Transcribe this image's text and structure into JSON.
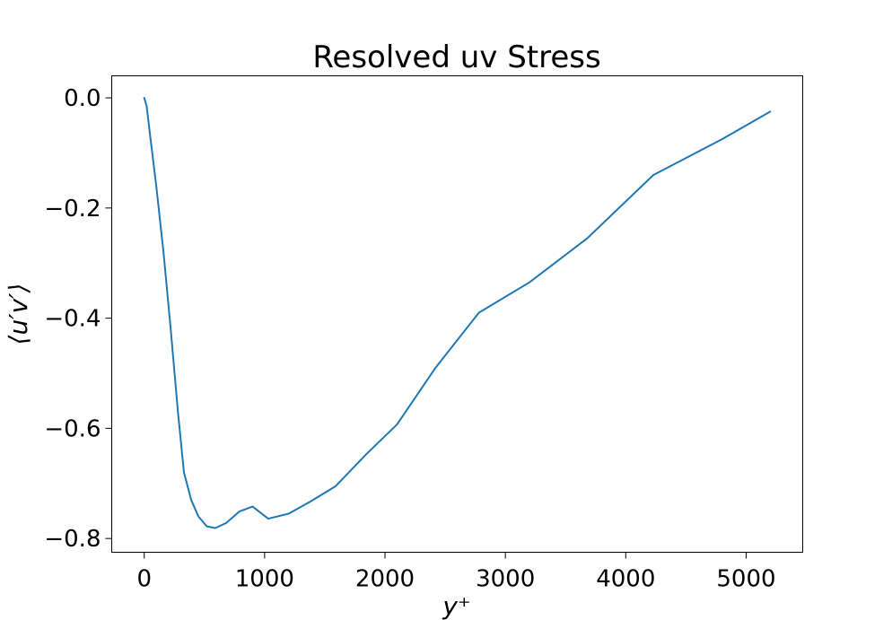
{
  "chart_data": {
    "type": "line",
    "title": "Resolved uv Stress",
    "xlabel": "y⁺",
    "ylabel": "⟨u′v′⟩",
    "xlim": [
      -270,
      5470
    ],
    "ylim": [
      -0.825,
      0.04
    ],
    "x_ticks": [
      {
        "value": 0,
        "label": "0"
      },
      {
        "value": 1000,
        "label": "1000"
      },
      {
        "value": 2000,
        "label": "2000"
      },
      {
        "value": 3000,
        "label": "3000"
      },
      {
        "value": 4000,
        "label": "4000"
      },
      {
        "value": 5000,
        "label": "5000"
      }
    ],
    "y_ticks": [
      {
        "value": 0.0,
        "label": "0.0"
      },
      {
        "value": -0.2,
        "label": "−0.2"
      },
      {
        "value": -0.4,
        "label": "−0.4"
      },
      {
        "value": -0.6,
        "label": "−0.6"
      },
      {
        "value": -0.8,
        "label": "−0.8"
      }
    ],
    "grid": false,
    "series": [
      {
        "color": "#1f77b4",
        "x": [
          0,
          20,
          50,
          100,
          160,
          220,
          280,
          330,
          390,
          450,
          520,
          590,
          680,
          790,
          900,
          1030,
          1200,
          1380,
          1590,
          1840,
          2100,
          2420,
          2780,
          3200,
          3680,
          4230,
          4800,
          5200
        ],
        "y": [
          0.0,
          -0.015,
          -0.07,
          -0.16,
          -0.28,
          -0.42,
          -0.57,
          -0.68,
          -0.73,
          -0.76,
          -0.778,
          -0.781,
          -0.772,
          -0.751,
          -0.742,
          -0.764,
          -0.755,
          -0.733,
          -0.705,
          -0.648,
          -0.593,
          -0.49,
          -0.39,
          -0.335,
          -0.255,
          -0.14,
          -0.075,
          -0.025
        ]
      }
    ]
  }
}
